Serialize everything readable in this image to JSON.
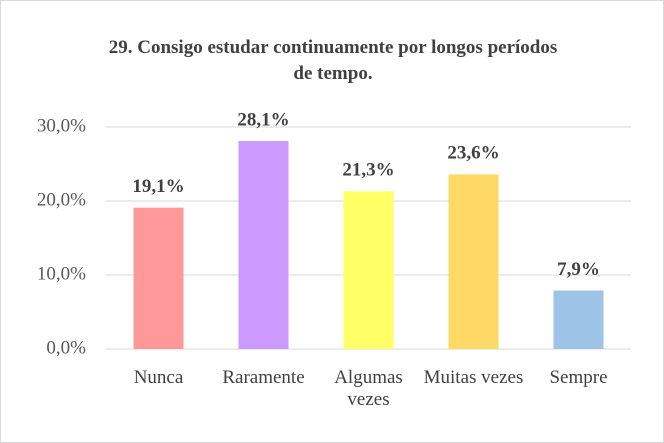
{
  "chart_data": {
    "type": "bar",
    "title": "29. Consigo estudar continuamente por longos períodos de tempo.",
    "categories": [
      "Nunca",
      "Raramente",
      "Algumas vezes",
      "Muitas vezes",
      "Sempre"
    ],
    "values": [
      19.1,
      28.1,
      21.3,
      23.6,
      7.9
    ],
    "value_labels": [
      "19,1%",
      "28,1%",
      "21,3%",
      "23,6%",
      "7,9%"
    ],
    "colors": [
      "#ff9999",
      "#cc99ff",
      "#ffff66",
      "#ffd966",
      "#9dc3e6"
    ],
    "ylim": [
      0,
      30
    ],
    "yticks": [
      {
        "value": 0,
        "label": "0,0%"
      },
      {
        "value": 10,
        "label": "10,0%"
      },
      {
        "value": 20,
        "label": "20,0%"
      },
      {
        "value": 30,
        "label": "30,0%"
      }
    ],
    "grid": true
  }
}
